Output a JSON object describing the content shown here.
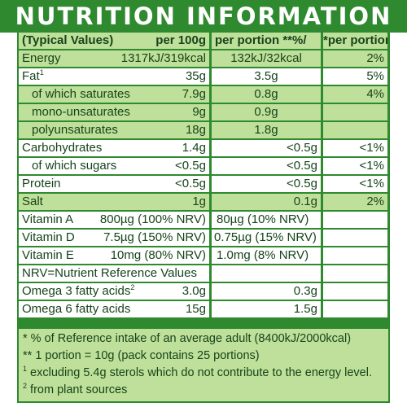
{
  "title": "NUTRITION INFORMATION",
  "header": {
    "col1": "(Typical Values)",
    "col1_right": "per 100g",
    "col2": "per portion **%/",
    "col3": "*per portion**"
  },
  "rows": [
    {
      "label": "Energy",
      "per100": "1317kJ/319kcal",
      "portion": "132kJ/32kcal",
      "ri": "2%"
    },
    {
      "label": "Fat",
      "sup": "1",
      "per100": "35g",
      "portion": "3.5g",
      "ri": "5%"
    },
    {
      "label": "of which saturates",
      "per100": "7.9g",
      "portion": "0.8g",
      "ri": "4%"
    },
    {
      "label": "mono-unsaturates",
      "per100": "9g",
      "portion": "0.9g",
      "ri": ""
    },
    {
      "label": "polyunsaturates",
      "per100": "18g",
      "portion": "1.8g",
      "ri": ""
    },
    {
      "label": "Carbohydrates",
      "per100": "1.4g",
      "portion": "<0.5g",
      "ri": "<1%"
    },
    {
      "label": "of which sugars",
      "per100": "<0.5g",
      "portion": "<0.5g",
      "ri": "<1%"
    },
    {
      "label": "Protein",
      "per100": "<0.5g",
      "portion": "<0.5g",
      "ri": "<1%"
    },
    {
      "label": "Salt",
      "per100": "1g",
      "portion": "0.1g",
      "ri": "2%"
    },
    {
      "label": "Vitamin A",
      "per100": "800µg (100% NRV)",
      "portion": "80µg (10% NRV)",
      "ri": ""
    },
    {
      "label": "Vitamin D",
      "per100": "7.5µg (150% NRV)",
      "portion": "0.75µg (15% NRV)",
      "ri": ""
    },
    {
      "label": "Vitamin E",
      "per100": "10mg (80% NRV)",
      "portion": "1.0mg (8% NRV)",
      "ri": ""
    }
  ],
  "nrv_note": "NRV=Nutrient Reference Values",
  "omega": [
    {
      "label": "Omega 3 fatty acids",
      "sup": "2",
      "per100": "3.0g",
      "portion": "0.3g"
    },
    {
      "label": "Omega 6 fatty acids",
      "per100": "15g",
      "portion": "1.5g"
    }
  ],
  "footnotes": {
    "ri": "* % of Reference intake of an average adult (8400kJ/2000kcal)",
    "portion": "** 1 portion = 10g (pack contains 25 portions)",
    "sterols_mark": "1",
    "sterols": " excluding 5.4g sterols which do not contribute to the energy level.",
    "plant_mark": "2",
    "plant": " from plant sources"
  },
  "colors": {
    "brand_green": "#2f8a2f",
    "light_green": "#bfe09a",
    "text": "#16441a"
  }
}
